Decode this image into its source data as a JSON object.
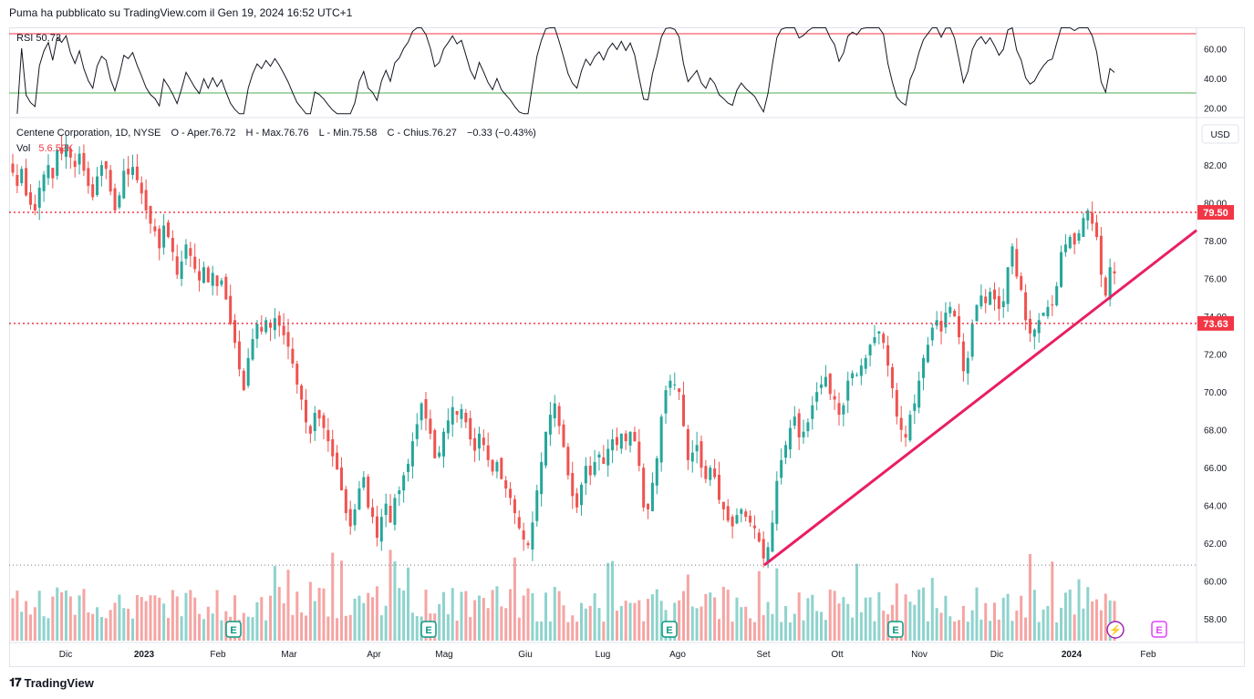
{
  "header": {
    "text": "Puma ha pubblicato su TradingView.com il Gen 19, 2024 16:52 UTC+1"
  },
  "rsi": {
    "name": "RSI",
    "value": "50.73",
    "upper_line": 70,
    "lower_line": 30,
    "ticks": [
      "60.00",
      "40.00",
      "20.00"
    ],
    "line_color": "#131722",
    "upper_color": "#f23645",
    "lower_color": "#4caf50"
  },
  "legend": {
    "symbol": "Centene Corporation, 1D, NYSE",
    "open": "O - Aper.76.72",
    "high": "H - Max.76.76",
    "low": "L - Min.75.58",
    "close": "C - Chius.76.27",
    "change": "−0.33 (−0.43%)",
    "volume_label": "Vol",
    "volume_value": "5.6.52K"
  },
  "price_axis": {
    "currency": "USD",
    "ticks": [
      "82.00",
      "80.00",
      "78.00",
      "76.00",
      "74.00",
      "72.00",
      "70.00",
      "68.00",
      "66.00",
      "64.00",
      "62.00",
      "60.00",
      "58.00"
    ],
    "markers": [
      {
        "label": "79.50",
        "color": "#f23645"
      },
      {
        "label": "73.63",
        "color": "#f23645"
      }
    ]
  },
  "time_axis": {
    "labels": [
      "Dic",
      "2023",
      "Feb",
      "Mar",
      "Apr",
      "Mag",
      "Giu",
      "Lug",
      "Ago",
      "Set",
      "Ott",
      "Nov",
      "Dic",
      "2024",
      "Feb"
    ]
  },
  "levels": {
    "resistance": 79.5,
    "support": 73.63,
    "bottom_dotted": 60.85
  },
  "trendline": {
    "from": {
      "date": "Set",
      "price": 60.85
    },
    "to": {
      "date": "Feb",
      "price": 78.55
    },
    "color": "#e91e63"
  },
  "events": [
    {
      "type": "earnings",
      "label": "E",
      "month": "Feb"
    },
    {
      "type": "earnings",
      "label": "E",
      "month": "Apr-Mag"
    },
    {
      "type": "earnings",
      "label": "E",
      "month": "Ago"
    },
    {
      "type": "earnings",
      "label": "E",
      "month": "Nov"
    },
    {
      "type": "dividend-flash",
      "label": "⚡",
      "month": "2024"
    },
    {
      "type": "earnings-upcoming",
      "label": "E",
      "month": "Feb"
    }
  ],
  "colors": {
    "up": "#26a69a",
    "down": "#ef5350",
    "up_vol": "#8fd3cd",
    "down_vol": "#f5a5a3",
    "grid": "#f0f3fa"
  },
  "chart_data": {
    "type": "candlestick",
    "ylim": [
      57,
      83.5
    ],
    "closes": [
      81.6,
      80.9,
      81.8,
      80.4,
      79.9,
      79.6,
      80.8,
      81.5,
      82.0,
      81.3,
      82.8,
      82.6,
      83.1,
      82.4,
      81.9,
      82.6,
      81.7,
      80.9,
      80.3,
      81.4,
      82.0,
      81.8,
      80.6,
      79.6,
      80.4,
      81.7,
      81.5,
      81.9,
      81.2,
      80.5,
      79.6,
      78.9,
      78.5,
      77.6,
      78.8,
      78.2,
      77.4,
      76.2,
      76.9,
      77.8,
      77.2,
      76.5,
      75.9,
      76.6,
      75.8,
      76.3,
      75.6,
      75.9,
      74.9,
      73.6,
      72.6,
      71.2,
      70.1,
      71.8,
      72.8,
      73.6,
      73.2,
      73.8,
      73.4,
      73.9,
      73.5,
      73.0,
      72.4,
      71.5,
      70.4,
      69.6,
      68.4,
      67.8,
      68.9,
      68.6,
      68.1,
      67.4,
      66.6,
      65.9,
      64.8,
      63.6,
      62.9,
      63.8,
      64.9,
      65.5,
      63.9,
      63.4,
      62.3,
      63.4,
      64.1,
      63.1,
      64.4,
      64.8,
      65.6,
      66.2,
      67.4,
      68.3,
      69.4,
      68.6,
      67.8,
      66.5,
      66.8,
      67.9,
      68.5,
      69.2,
      68.8,
      69.1,
      68.4,
      67.5,
      66.9,
      67.8,
      67.2,
      66.4,
      65.8,
      66.3,
      65.4,
      64.9,
      64.4,
      63.6,
      62.8,
      62.2,
      61.9,
      63.1,
      64.8,
      66.3,
      67.9,
      68.8,
      69.4,
      68.2,
      67.1,
      65.6,
      64.5,
      63.9,
      65.1,
      66.1,
      65.6,
      66.3,
      66.7,
      66.2,
      67.0,
      67.5,
      67.2,
      67.8,
      67.4,
      67.9,
      67.4,
      66.1,
      63.9,
      63.8,
      65.2,
      66.5,
      68.7,
      70.1,
      70.6,
      70.4,
      70.0,
      68.2,
      66.4,
      66.8,
      67.2,
      66.0,
      65.4,
      66.0,
      65.5,
      64.3,
      63.8,
      63.2,
      62.9,
      63.5,
      63.8,
      63.4,
      63.1,
      62.8,
      62.1,
      61.2,
      61.8,
      63.1,
      65.3,
      66.4,
      67.2,
      68.1,
      68.7,
      67.6,
      67.9,
      68.4,
      69.3,
      70.0,
      70.4,
      70.8,
      69.9,
      69.6,
      68.8,
      69.3,
      70.6,
      71.0,
      70.9,
      71.4,
      71.8,
      72.5,
      72.9,
      73.2,
      72.6,
      71.4,
      70.2,
      68.7,
      68.0,
      67.6,
      68.8,
      69.4,
      70.6,
      71.8,
      72.5,
      73.4,
      73.8,
      73.2,
      74.2,
      74.5,
      74.0,
      72.9,
      71.1,
      71.8,
      73.6,
      74.6,
      75.1,
      74.7,
      75.3,
      74.9,
      74.4,
      74.8,
      76.6,
      77.7,
      76.1,
      75.4,
      73.8,
      73.1,
      73.3,
      73.8,
      74.2,
      74.5,
      74.6,
      75.6,
      77.4,
      77.8,
      78.2,
      77.8,
      78.4,
      79.2,
      79.6,
      78.9,
      78.2,
      76.2,
      75.1,
      76.6,
      76.27
    ]
  }
}
